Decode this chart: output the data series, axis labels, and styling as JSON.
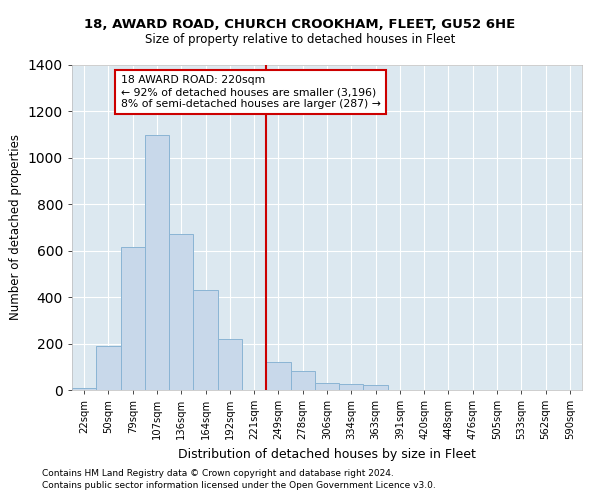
{
  "title1": "18, AWARD ROAD, CHURCH CROOKHAM, FLEET, GU52 6HE",
  "title2": "Size of property relative to detached houses in Fleet",
  "xlabel": "Distribution of detached houses by size in Fleet",
  "ylabel": "Number of detached properties",
  "bar_labels": [
    "22sqm",
    "50sqm",
    "79sqm",
    "107sqm",
    "136sqm",
    "164sqm",
    "192sqm",
    "221sqm",
    "249sqm",
    "278sqm",
    "306sqm",
    "334sqm",
    "363sqm",
    "391sqm",
    "420sqm",
    "448sqm",
    "476sqm",
    "505sqm",
    "533sqm",
    "562sqm",
    "590sqm"
  ],
  "bar_values": [
    10,
    190,
    615,
    1100,
    670,
    430,
    220,
    0,
    120,
    80,
    30,
    25,
    20,
    0,
    0,
    0,
    0,
    0,
    0,
    0,
    0
  ],
  "bar_color": "#c8d8ea",
  "bar_edge_color": "#8ab4d4",
  "bg_color": "#dce8f0",
  "property_label": "18 AWARD ROAD: 220sqm",
  "annotation_line1": "← 92% of detached houses are smaller (3,196)",
  "annotation_line2": "8% of semi-detached houses are larger (287) →",
  "vline_x_index": 7,
  "annotation_box_color": "#cc0000",
  "footnote1": "Contains HM Land Registry data © Crown copyright and database right 2024.",
  "footnote2": "Contains public sector information licensed under the Open Government Licence v3.0.",
  "ylim": [
    0,
    1400
  ],
  "yticks": [
    0,
    200,
    400,
    600,
    800,
    1000,
    1200,
    1400
  ]
}
